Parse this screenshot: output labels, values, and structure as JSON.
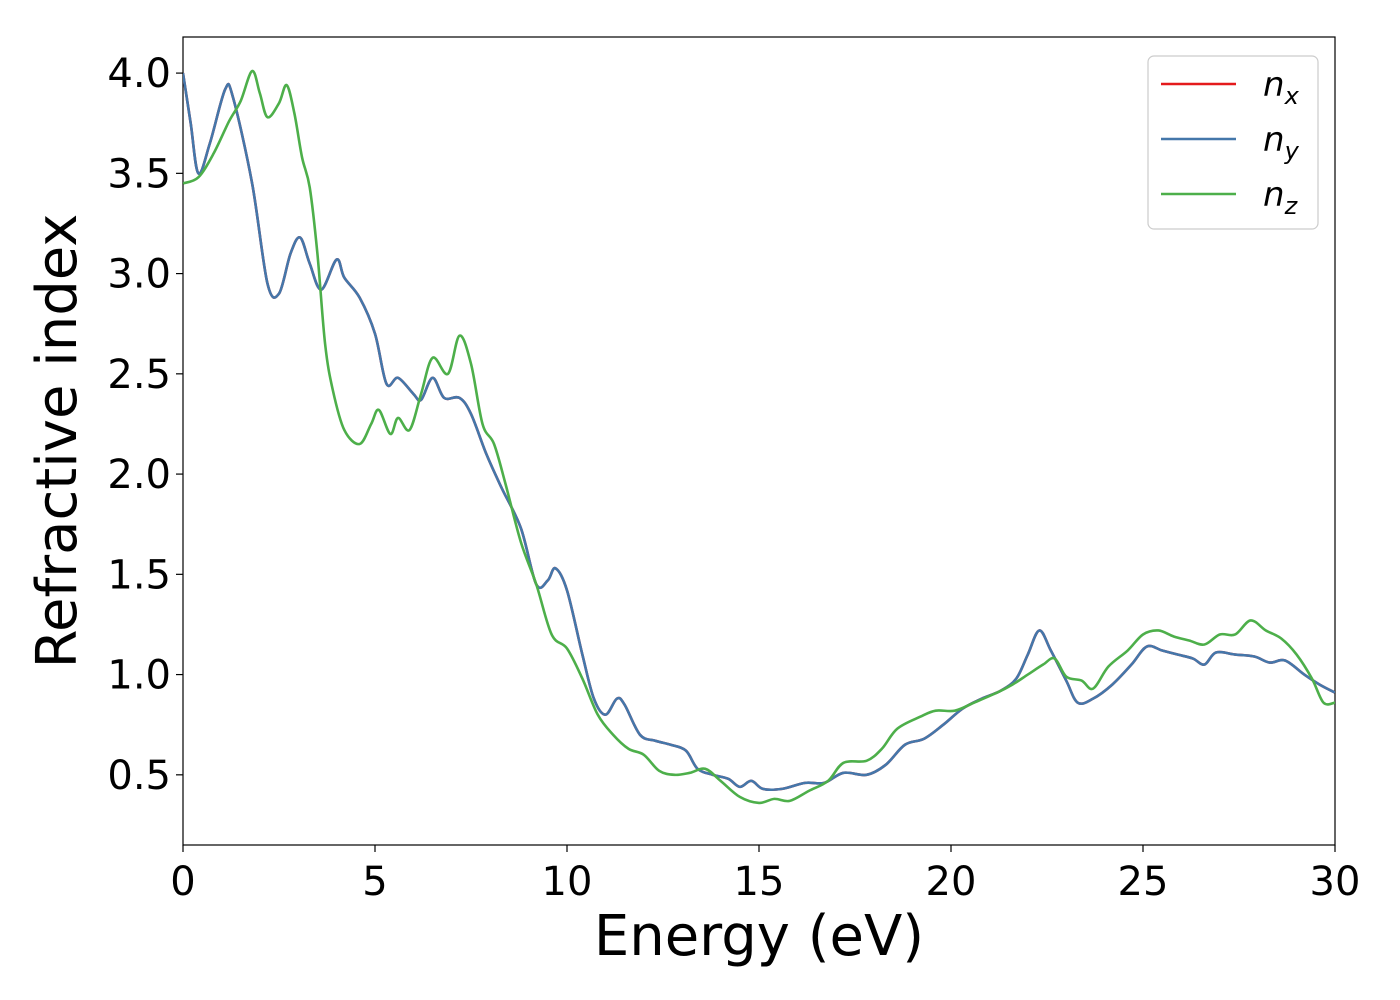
{
  "chart_data": {
    "type": "line",
    "xlabel": "Energy (eV)",
    "ylabel": "Refractive index",
    "xlim": [
      0,
      30
    ],
    "ylim": [
      0.15,
      4.18
    ],
    "xticks": [
      "0",
      "5",
      "10",
      "15",
      "20",
      "25",
      "30"
    ],
    "yticks": [
      "0.5",
      "1.0",
      "1.5",
      "2.0",
      "2.5",
      "3.0",
      "3.5",
      "4.0"
    ],
    "grid": false,
    "legend_position": "top-right",
    "series": [
      {
        "name": "n",
        "subscript": "x",
        "color": "#e41a1c",
        "points": [
          [
            0,
            4.0
          ],
          [
            0.2,
            3.75
          ],
          [
            0.4,
            3.5
          ],
          [
            0.7,
            3.65
          ],
          [
            1.1,
            3.92
          ],
          [
            1.3,
            3.88
          ],
          [
            1.8,
            3.45
          ],
          [
            2.2,
            2.95
          ],
          [
            2.5,
            2.9
          ],
          [
            2.8,
            3.1
          ],
          [
            3.05,
            3.18
          ],
          [
            3.3,
            3.05
          ],
          [
            3.6,
            2.92
          ],
          [
            4.0,
            3.07
          ],
          [
            4.2,
            2.98
          ],
          [
            4.6,
            2.88
          ],
          [
            5.0,
            2.7
          ],
          [
            5.3,
            2.45
          ],
          [
            5.6,
            2.48
          ],
          [
            6.0,
            2.4
          ],
          [
            6.2,
            2.37
          ],
          [
            6.5,
            2.48
          ],
          [
            6.8,
            2.38
          ],
          [
            7.2,
            2.38
          ],
          [
            7.5,
            2.3
          ],
          [
            7.9,
            2.1
          ],
          [
            8.3,
            1.93
          ],
          [
            8.8,
            1.73
          ],
          [
            9.2,
            1.45
          ],
          [
            9.5,
            1.47
          ],
          [
            9.7,
            1.53
          ],
          [
            10.0,
            1.42
          ],
          [
            10.4,
            1.1
          ],
          [
            10.7,
            0.88
          ],
          [
            11.0,
            0.8
          ],
          [
            11.3,
            0.88
          ],
          [
            11.5,
            0.85
          ],
          [
            11.9,
            0.7
          ],
          [
            12.3,
            0.67
          ],
          [
            12.7,
            0.65
          ],
          [
            13.1,
            0.62
          ],
          [
            13.4,
            0.53
          ],
          [
            13.8,
            0.5
          ],
          [
            14.2,
            0.48
          ],
          [
            14.5,
            0.44
          ],
          [
            14.8,
            0.47
          ],
          [
            15.1,
            0.43
          ],
          [
            15.6,
            0.43
          ],
          [
            16.2,
            0.46
          ],
          [
            16.7,
            0.46
          ],
          [
            17.2,
            0.51
          ],
          [
            17.8,
            0.5
          ],
          [
            18.3,
            0.55
          ],
          [
            18.8,
            0.65
          ],
          [
            19.3,
            0.68
          ],
          [
            19.8,
            0.75
          ],
          [
            20.3,
            0.83
          ],
          [
            20.8,
            0.88
          ],
          [
            21.3,
            0.92
          ],
          [
            21.7,
            0.98
          ],
          [
            22.0,
            1.1
          ],
          [
            22.3,
            1.22
          ],
          [
            22.6,
            1.12
          ],
          [
            23.0,
            0.97
          ],
          [
            23.3,
            0.86
          ],
          [
            23.7,
            0.88
          ],
          [
            24.2,
            0.95
          ],
          [
            24.7,
            1.05
          ],
          [
            25.1,
            1.14
          ],
          [
            25.5,
            1.12
          ],
          [
            25.9,
            1.1
          ],
          [
            26.3,
            1.08
          ],
          [
            26.6,
            1.05
          ],
          [
            26.9,
            1.11
          ],
          [
            27.4,
            1.1
          ],
          [
            27.9,
            1.09
          ],
          [
            28.3,
            1.06
          ],
          [
            28.7,
            1.07
          ],
          [
            29.2,
            1.0
          ],
          [
            29.6,
            0.95
          ],
          [
            30.0,
            0.91
          ]
        ]
      },
      {
        "name": "n",
        "subscript": "y",
        "color": "#4477aa",
        "points": [
          [
            0,
            4.0
          ],
          [
            0.2,
            3.75
          ],
          [
            0.4,
            3.5
          ],
          [
            0.7,
            3.65
          ],
          [
            1.1,
            3.92
          ],
          [
            1.3,
            3.88
          ],
          [
            1.8,
            3.45
          ],
          [
            2.2,
            2.95
          ],
          [
            2.5,
            2.9
          ],
          [
            2.8,
            3.1
          ],
          [
            3.05,
            3.18
          ],
          [
            3.3,
            3.05
          ],
          [
            3.6,
            2.92
          ],
          [
            4.0,
            3.07
          ],
          [
            4.2,
            2.98
          ],
          [
            4.6,
            2.88
          ],
          [
            5.0,
            2.7
          ],
          [
            5.3,
            2.45
          ],
          [
            5.6,
            2.48
          ],
          [
            6.0,
            2.4
          ],
          [
            6.2,
            2.37
          ],
          [
            6.5,
            2.48
          ],
          [
            6.8,
            2.38
          ],
          [
            7.2,
            2.38
          ],
          [
            7.5,
            2.3
          ],
          [
            7.9,
            2.1
          ],
          [
            8.3,
            1.93
          ],
          [
            8.8,
            1.73
          ],
          [
            9.2,
            1.45
          ],
          [
            9.5,
            1.47
          ],
          [
            9.7,
            1.53
          ],
          [
            10.0,
            1.42
          ],
          [
            10.4,
            1.1
          ],
          [
            10.7,
            0.88
          ],
          [
            11.0,
            0.8
          ],
          [
            11.3,
            0.88
          ],
          [
            11.5,
            0.85
          ],
          [
            11.9,
            0.7
          ],
          [
            12.3,
            0.67
          ],
          [
            12.7,
            0.65
          ],
          [
            13.1,
            0.62
          ],
          [
            13.4,
            0.53
          ],
          [
            13.8,
            0.5
          ],
          [
            14.2,
            0.48
          ],
          [
            14.5,
            0.44
          ],
          [
            14.8,
            0.47
          ],
          [
            15.1,
            0.43
          ],
          [
            15.6,
            0.43
          ],
          [
            16.2,
            0.46
          ],
          [
            16.7,
            0.46
          ],
          [
            17.2,
            0.51
          ],
          [
            17.8,
            0.5
          ],
          [
            18.3,
            0.55
          ],
          [
            18.8,
            0.65
          ],
          [
            19.3,
            0.68
          ],
          [
            19.8,
            0.75
          ],
          [
            20.3,
            0.83
          ],
          [
            20.8,
            0.88
          ],
          [
            21.3,
            0.92
          ],
          [
            21.7,
            0.98
          ],
          [
            22.0,
            1.1
          ],
          [
            22.3,
            1.22
          ],
          [
            22.6,
            1.12
          ],
          [
            23.0,
            0.97
          ],
          [
            23.3,
            0.86
          ],
          [
            23.7,
            0.88
          ],
          [
            24.2,
            0.95
          ],
          [
            24.7,
            1.05
          ],
          [
            25.1,
            1.14
          ],
          [
            25.5,
            1.12
          ],
          [
            25.9,
            1.1
          ],
          [
            26.3,
            1.08
          ],
          [
            26.6,
            1.05
          ],
          [
            26.9,
            1.11
          ],
          [
            27.4,
            1.1
          ],
          [
            27.9,
            1.09
          ],
          [
            28.3,
            1.06
          ],
          [
            28.7,
            1.07
          ],
          [
            29.2,
            1.0
          ],
          [
            29.6,
            0.95
          ],
          [
            30.0,
            0.91
          ]
        ]
      },
      {
        "name": "n",
        "subscript": "z",
        "color": "#4daf4a",
        "points": [
          [
            0,
            3.45
          ],
          [
            0.4,
            3.48
          ],
          [
            0.8,
            3.6
          ],
          [
            1.2,
            3.76
          ],
          [
            1.5,
            3.86
          ],
          [
            1.8,
            4.01
          ],
          [
            2.0,
            3.9
          ],
          [
            2.2,
            3.78
          ],
          [
            2.5,
            3.85
          ],
          [
            2.7,
            3.94
          ],
          [
            2.9,
            3.8
          ],
          [
            3.1,
            3.58
          ],
          [
            3.3,
            3.43
          ],
          [
            3.5,
            3.1
          ],
          [
            3.7,
            2.65
          ],
          [
            3.9,
            2.42
          ],
          [
            4.2,
            2.22
          ],
          [
            4.6,
            2.15
          ],
          [
            4.9,
            2.25
          ],
          [
            5.1,
            2.32
          ],
          [
            5.4,
            2.2
          ],
          [
            5.6,
            2.28
          ],
          [
            5.9,
            2.22
          ],
          [
            6.2,
            2.4
          ],
          [
            6.5,
            2.58
          ],
          [
            6.9,
            2.5
          ],
          [
            7.2,
            2.69
          ],
          [
            7.5,
            2.55
          ],
          [
            7.8,
            2.25
          ],
          [
            8.1,
            2.15
          ],
          [
            8.4,
            1.95
          ],
          [
            8.8,
            1.66
          ],
          [
            9.2,
            1.45
          ],
          [
            9.6,
            1.2
          ],
          [
            10.0,
            1.13
          ],
          [
            10.4,
            0.98
          ],
          [
            10.8,
            0.8
          ],
          [
            11.2,
            0.7
          ],
          [
            11.6,
            0.63
          ],
          [
            12.0,
            0.6
          ],
          [
            12.4,
            0.52
          ],
          [
            12.8,
            0.5
          ],
          [
            13.2,
            0.51
          ],
          [
            13.6,
            0.53
          ],
          [
            14.0,
            0.47
          ],
          [
            14.5,
            0.39
          ],
          [
            15.0,
            0.36
          ],
          [
            15.4,
            0.38
          ],
          [
            15.8,
            0.37
          ],
          [
            16.3,
            0.42
          ],
          [
            16.8,
            0.47
          ],
          [
            17.2,
            0.56
          ],
          [
            17.8,
            0.57
          ],
          [
            18.2,
            0.63
          ],
          [
            18.6,
            0.73
          ],
          [
            19.2,
            0.79
          ],
          [
            19.6,
            0.82
          ],
          [
            20.1,
            0.82
          ],
          [
            20.6,
            0.86
          ],
          [
            21.2,
            0.91
          ],
          [
            21.6,
            0.95
          ],
          [
            22.0,
            1.0
          ],
          [
            22.4,
            1.05
          ],
          [
            22.7,
            1.08
          ],
          [
            23.0,
            0.99
          ],
          [
            23.4,
            0.97
          ],
          [
            23.7,
            0.93
          ],
          [
            24.1,
            1.04
          ],
          [
            24.6,
            1.12
          ],
          [
            25.0,
            1.2
          ],
          [
            25.4,
            1.22
          ],
          [
            25.8,
            1.19
          ],
          [
            26.2,
            1.17
          ],
          [
            26.6,
            1.15
          ],
          [
            27.0,
            1.2
          ],
          [
            27.4,
            1.2
          ],
          [
            27.8,
            1.27
          ],
          [
            28.2,
            1.22
          ],
          [
            28.6,
            1.18
          ],
          [
            29.0,
            1.1
          ],
          [
            29.4,
            0.98
          ],
          [
            29.7,
            0.86
          ],
          [
            30.0,
            0.86
          ]
        ]
      }
    ]
  }
}
